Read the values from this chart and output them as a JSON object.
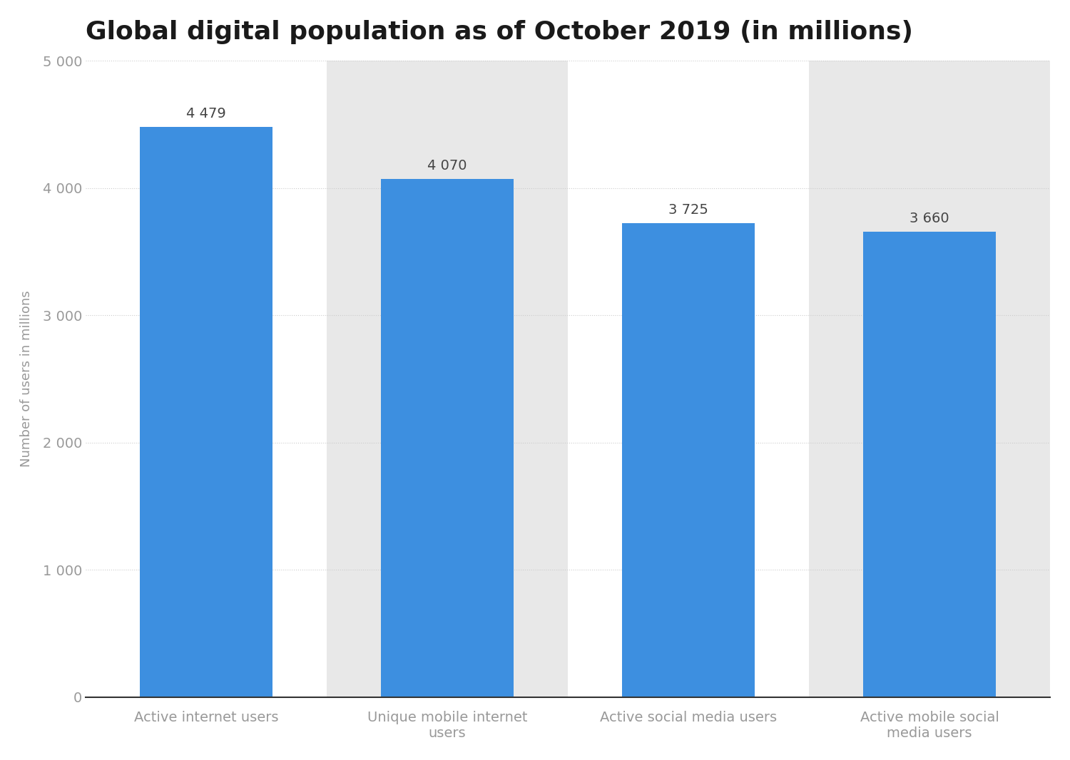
{
  "title": "Global digital population as of October 2019 (in millions)",
  "categories": [
    "Active internet users",
    "Unique mobile internet\nusers",
    "Active social media users",
    "Active mobile social\nmedia users"
  ],
  "values": [
    4479,
    4070,
    3725,
    3660
  ],
  "bar_labels": [
    "4 479",
    "4 070",
    "3 725",
    "3 660"
  ],
  "bar_color": "#3d8fe0",
  "ylabel": "Number of users in millions",
  "ylim": [
    0,
    5000
  ],
  "yticks": [
    0,
    1000,
    2000,
    3000,
    4000,
    5000
  ],
  "ytick_labels": [
    "0",
    "1 000",
    "2 000",
    "3 000",
    "4 000",
    "5 000"
  ],
  "title_fontsize": 26,
  "label_fontsize": 14,
  "tick_fontsize": 14,
  "bar_label_fontsize": 14,
  "ylabel_fontsize": 13,
  "background_color": "#ffffff",
  "plot_bg_white": "#ffffff",
  "plot_bg_gray": "#e8e8e8",
  "grid_color": "#cccccc",
  "axis_label_color": "#999999",
  "title_color": "#1a1a1a",
  "bar_label_color": "#444444"
}
